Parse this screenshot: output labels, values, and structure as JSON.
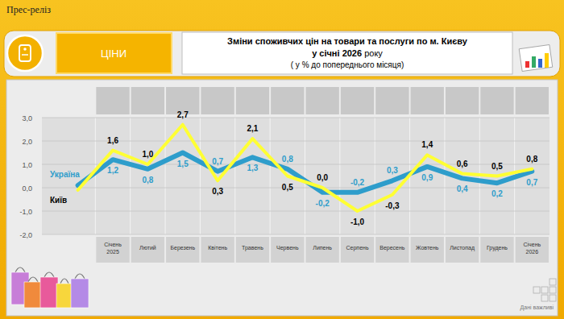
{
  "header": {
    "label": "Прес-реліз",
    "section": "ЦІНИ"
  },
  "footer": "Дані важливі",
  "chart_data": {
    "type": "line",
    "title": "Зміни споживчих цін на товари та послуги по м. Києву",
    "subtitle": "у січні 2026 року",
    "annotations": [
      "( у % до попереднього місяця)"
    ],
    "categories": [
      null,
      "Січень 2025",
      "Лютий",
      "Березень",
      "Квітень",
      "Травень",
      "Червень",
      "Липень",
      "Серпень",
      "Вересень",
      "Жовтень",
      "Листопад",
      "Грудень",
      "Січень 2026"
    ],
    "series": [
      {
        "name": "Україна",
        "color": "#2e9dcb",
        "values": [
          0.1,
          1.2,
          0.8,
          1.5,
          0.7,
          1.3,
          0.8,
          -0.2,
          -0.2,
          0.3,
          0.9,
          0.4,
          0.2,
          0.7
        ],
        "value_labels": [
          null,
          "1,2",
          "0,8",
          "1,5",
          "0,7",
          "1,3",
          "0,8",
          "-0,2",
          "-0,2",
          "0,3",
          "0,9",
          "0,4",
          "0,2",
          "0,7"
        ]
      },
      {
        "name": "Київ",
        "color": "#ffff33",
        "values": [
          -0.1,
          1.6,
          1.0,
          2.7,
          0.3,
          2.1,
          0.5,
          0.0,
          -1.0,
          -0.3,
          1.4,
          0.6,
          0.5,
          0.8
        ],
        "value_labels": [
          null,
          "1,6",
          "1,0",
          "2,7",
          "0,3",
          "2,1",
          "0,5",
          "0,0",
          "-1,0",
          "-0,3",
          "1,4",
          "0,6",
          "0,5",
          "0,8"
        ]
      }
    ],
    "ylim": [
      -2,
      3
    ],
    "yticks": [
      {
        "value": -2,
        "label": "-2,0"
      },
      {
        "value": -1,
        "label": "-1,0"
      },
      {
        "value": 0,
        "label": "0,0"
      },
      {
        "value": 1,
        "label": "1,0"
      },
      {
        "value": 2,
        "label": "2,0"
      },
      {
        "value": 3,
        "label": "3,0"
      }
    ],
    "grid": true,
    "data_labels": true
  }
}
